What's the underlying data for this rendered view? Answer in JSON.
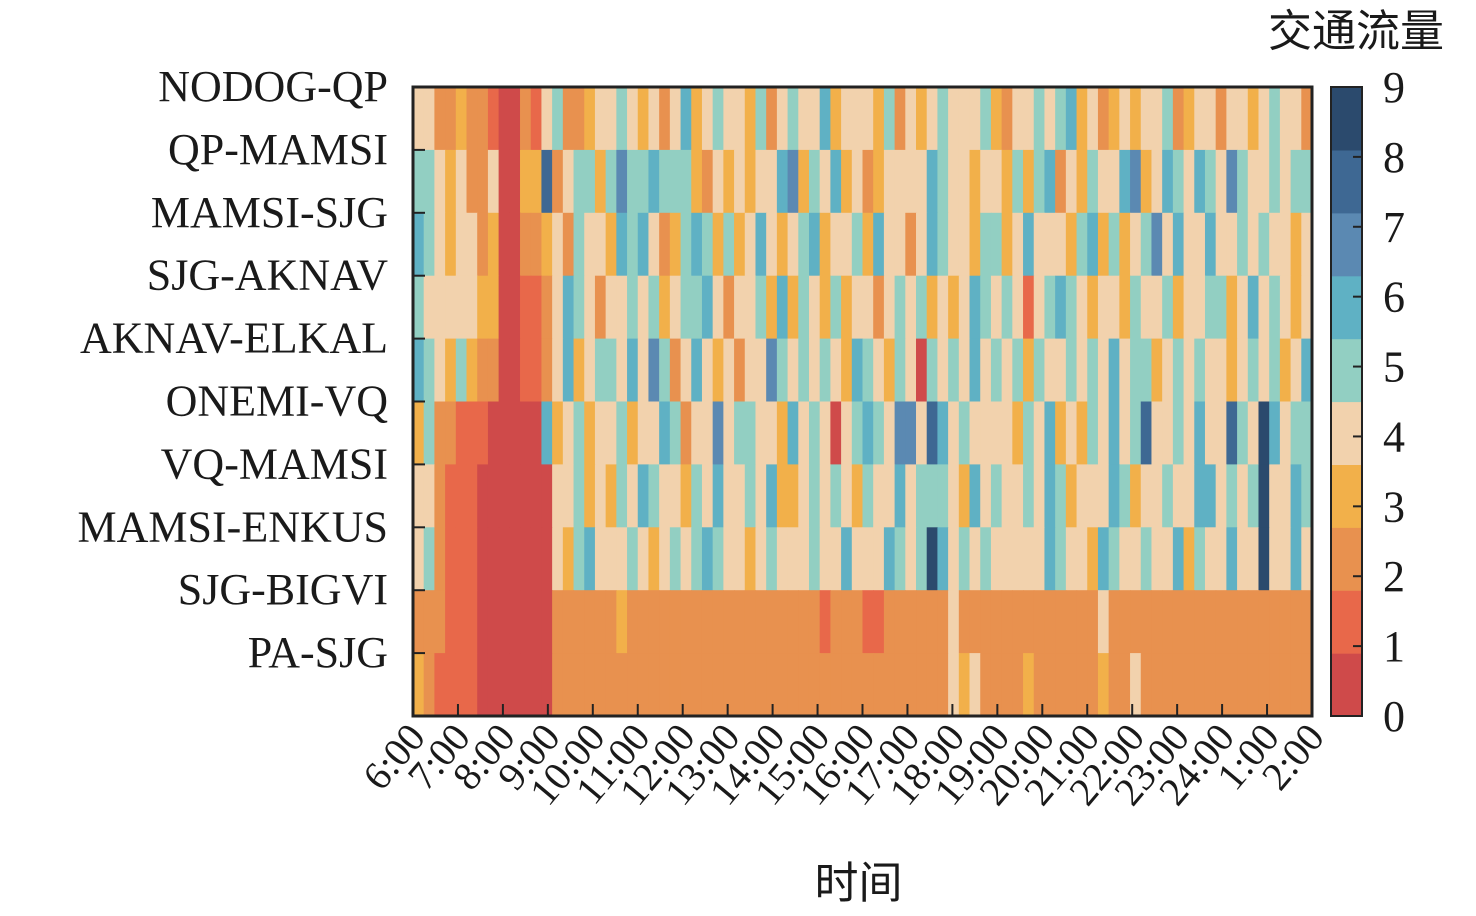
{
  "chart_data": {
    "type": "heatmap",
    "title": "",
    "xlabel": "时间",
    "ylabel": "",
    "colorbar": {
      "title": "交通流量",
      "ticks": [
        "0",
        "1",
        "2",
        "3",
        "4",
        "5",
        "6",
        "7",
        "8",
        "9"
      ],
      "range": [
        0,
        9
      ],
      "colors": [
        "#cf4a4a",
        "#e8684a",
        "#e8914f",
        "#f2b04a",
        "#f2d2ad",
        "#92cfc2",
        "#5fb1c4",
        "#5b89b2",
        "#3e6893",
        "#2b4a6d"
      ]
    },
    "rows": [
      "NODOG-QP",
      "QP-MAMSI",
      "MAMSI-SJG",
      "SJG-AKNAV",
      "AKNAV-ELKAL",
      "ONEMI-VQ",
      "VQ-MAMSI",
      "MAMSI-ENKUS",
      "SJG-BIGVI",
      "PA-SJG"
    ],
    "x_ticks": [
      "6:00",
      "7:00",
      "8:00",
      "9:00",
      "10:00",
      "11:00",
      "12:00",
      "13:00",
      "14:00",
      "15:00",
      "16:00",
      "17:00",
      "18:00",
      "19:00",
      "20:00",
      "21:00",
      "22:00",
      "23:00",
      "24:00",
      "1:00",
      "2:00"
    ],
    "values": [
      [
        4,
        4,
        2,
        2,
        3,
        2,
        2,
        1,
        0,
        0,
        2,
        1,
        4,
        5,
        2,
        2,
        3,
        4,
        4,
        5,
        4,
        3,
        4,
        2,
        4,
        6,
        3,
        4,
        5,
        4,
        4,
        3,
        5,
        2,
        4,
        5,
        4,
        4,
        6,
        3,
        4,
        4,
        4,
        3,
        5,
        2,
        4,
        3,
        4,
        5,
        4,
        4,
        4,
        5,
        3,
        2,
        4,
        4,
        5,
        4,
        5,
        6,
        3,
        4,
        2,
        3,
        4,
        3,
        4,
        4,
        5,
        2,
        3,
        4,
        4,
        2,
        4,
        4,
        3,
        4,
        5,
        4,
        4,
        2
      ],
      [
        5,
        5,
        4,
        3,
        4,
        2,
        2,
        4,
        0,
        0,
        3,
        3,
        8,
        2,
        4,
        5,
        5,
        3,
        5,
        7,
        5,
        5,
        6,
        5,
        5,
        5,
        3,
        2,
        4,
        3,
        4,
        3,
        4,
        4,
        6,
        7,
        3,
        5,
        4,
        6,
        3,
        4,
        2,
        3,
        4,
        4,
        4,
        4,
        6,
        5,
        4,
        4,
        3,
        4,
        4,
        3,
        5,
        3,
        5,
        6,
        2,
        4,
        3,
        5,
        4,
        4,
        6,
        7,
        3,
        4,
        6,
        5,
        4,
        6,
        5,
        4,
        7,
        5,
        4,
        4,
        5,
        4,
        5,
        5
      ],
      [
        6,
        5,
        4,
        3,
        4,
        4,
        2,
        3,
        0,
        0,
        2,
        2,
        3,
        4,
        2,
        5,
        4,
        4,
        3,
        6,
        5,
        6,
        4,
        2,
        3,
        5,
        6,
        5,
        3,
        5,
        3,
        4,
        6,
        4,
        3,
        4,
        5,
        6,
        3,
        4,
        4,
        5,
        3,
        6,
        4,
        4,
        2,
        4,
        6,
        5,
        4,
        4,
        3,
        5,
        5,
        3,
        4,
        6,
        4,
        4,
        4,
        3,
        5,
        6,
        3,
        5,
        3,
        4,
        5,
        7,
        4,
        6,
        4,
        4,
        6,
        4,
        4,
        5,
        4,
        5,
        4,
        4,
        3,
        4
      ],
      [
        5,
        4,
        4,
        4,
        4,
        4,
        3,
        3,
        0,
        0,
        1,
        1,
        2,
        4,
        6,
        5,
        4,
        2,
        4,
        4,
        5,
        4,
        5,
        3,
        4,
        5,
        5,
        6,
        4,
        2,
        4,
        4,
        5,
        3,
        6,
        3,
        5,
        4,
        3,
        5,
        3,
        4,
        4,
        2,
        4,
        5,
        4,
        5,
        3,
        4,
        3,
        4,
        6,
        5,
        4,
        5,
        4,
        1,
        4,
        5,
        6,
        5,
        4,
        3,
        4,
        4,
        3,
        5,
        4,
        4,
        5,
        3,
        4,
        4,
        5,
        5,
        3,
        4,
        6,
        4,
        5,
        4,
        3,
        4
      ],
      [
        6,
        5,
        4,
        3,
        5,
        3,
        2,
        2,
        0,
        0,
        1,
        1,
        2,
        4,
        6,
        3,
        4,
        5,
        5,
        4,
        6,
        4,
        7,
        5,
        2,
        4,
        6,
        4,
        3,
        4,
        2,
        4,
        4,
        7,
        5,
        4,
        5,
        4,
        5,
        4,
        3,
        6,
        5,
        4,
        3,
        5,
        4,
        0,
        5,
        4,
        5,
        4,
        6,
        4,
        5,
        4,
        5,
        3,
        5,
        4,
        4,
        5,
        4,
        5,
        4,
        6,
        4,
        5,
        5,
        3,
        4,
        5,
        4,
        5,
        4,
        4,
        3,
        4,
        5,
        4,
        5,
        3,
        4,
        6
      ],
      [
        3,
        5,
        2,
        2,
        1,
        1,
        1,
        0,
        0,
        0,
        0,
        0,
        6,
        3,
        4,
        5,
        3,
        4,
        4,
        5,
        3,
        4,
        4,
        6,
        5,
        2,
        4,
        4,
        7,
        4,
        5,
        5,
        4,
        4,
        3,
        6,
        4,
        5,
        4,
        0,
        4,
        5,
        6,
        5,
        4,
        7,
        7,
        4,
        8,
        6,
        4,
        5,
        4,
        4,
        4,
        4,
        3,
        5,
        4,
        6,
        3,
        4,
        3,
        5,
        4,
        6,
        4,
        5,
        8,
        4,
        4,
        5,
        4,
        6,
        4,
        4,
        8,
        5,
        4,
        9,
        6,
        4,
        5,
        5
      ],
      [
        4,
        4,
        2,
        1,
        1,
        1,
        0,
        0,
        0,
        0,
        0,
        0,
        0,
        4,
        4,
        5,
        3,
        4,
        3,
        5,
        4,
        6,
        5,
        4,
        4,
        3,
        5,
        4,
        6,
        4,
        4,
        5,
        4,
        6,
        3,
        3,
        4,
        5,
        4,
        5,
        4,
        3,
        5,
        4,
        4,
        6,
        4,
        5,
        5,
        5,
        4,
        3,
        6,
        4,
        5,
        4,
        4,
        5,
        4,
        6,
        5,
        3,
        4,
        4,
        4,
        6,
        5,
        3,
        4,
        4,
        5,
        4,
        4,
        6,
        6,
        4,
        5,
        4,
        5,
        9,
        4,
        4,
        6,
        5
      ],
      [
        4,
        5,
        2,
        1,
        1,
        1,
        0,
        0,
        0,
        0,
        0,
        0,
        0,
        4,
        3,
        5,
        6,
        4,
        4,
        4,
        5,
        4,
        3,
        4,
        5,
        4,
        5,
        6,
        5,
        4,
        4,
        3,
        4,
        5,
        4,
        4,
        4,
        5,
        4,
        4,
        6,
        4,
        4,
        4,
        6,
        5,
        4,
        5,
        9,
        6,
        4,
        5,
        4,
        5,
        4,
        4,
        4,
        4,
        4,
        6,
        5,
        4,
        4,
        3,
        6,
        5,
        4,
        4,
        5,
        4,
        4,
        6,
        3,
        5,
        4,
        4,
        6,
        4,
        4,
        9,
        4,
        4,
        6,
        4
      ],
      [
        2,
        2,
        2,
        1,
        1,
        1,
        0,
        0,
        0,
        0,
        0,
        0,
        0,
        2,
        2,
        2,
        2,
        2,
        2,
        3,
        2,
        2,
        2,
        2,
        2,
        2,
        2,
        2,
        2,
        2,
        2,
        2,
        2,
        2,
        2,
        2,
        2,
        2,
        1,
        2,
        2,
        2,
        1,
        1,
        2,
        2,
        2,
        2,
        2,
        2,
        4,
        2,
        2,
        2,
        2,
        2,
        2,
        2,
        2,
        2,
        2,
        2,
        2,
        2,
        4,
        2,
        2,
        2,
        2,
        2,
        2,
        2,
        2,
        2,
        2,
        2,
        2,
        2,
        2,
        2,
        2,
        2,
        2,
        2
      ],
      [
        3,
        2,
        1,
        1,
        1,
        1,
        0,
        0,
        0,
        0,
        0,
        0,
        0,
        2,
        2,
        2,
        2,
        2,
        2,
        2,
        2,
        2,
        2,
        2,
        2,
        2,
        2,
        2,
        2,
        2,
        2,
        2,
        2,
        2,
        2,
        2,
        2,
        2,
        2,
        2,
        2,
        2,
        2,
        2,
        2,
        2,
        2,
        2,
        2,
        2,
        4,
        3,
        4,
        2,
        2,
        2,
        2,
        3,
        2,
        2,
        2,
        2,
        2,
        2,
        3,
        2,
        2,
        4,
        2,
        2,
        2,
        2,
        2,
        2,
        2,
        2,
        2,
        2,
        2,
        2,
        2,
        2,
        2,
        2
      ]
    ]
  }
}
